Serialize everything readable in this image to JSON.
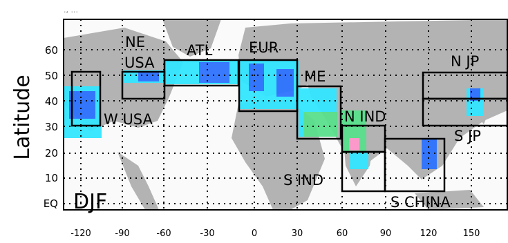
{
  "figure": {
    "season_label": "DJF",
    "y_axis_label": "Latitude",
    "top_corner_mark": "., ...",
    "x_ticks": [
      "-120",
      "-90",
      "-60",
      "-30",
      "0",
      "30",
      "60",
      "90",
      "120",
      "150"
    ],
    "y_ticks": [
      "EQ",
      "10",
      "20",
      "30",
      "40",
      "50",
      "60"
    ]
  },
  "regions": [
    {
      "name": "W USA",
      "lon": [
        -125,
        -115
      ],
      "lat": [
        30,
        50
      ]
    },
    {
      "name": "NE USA",
      "lon": [
        -85,
        -60
      ],
      "lat": [
        40,
        50
      ]
    },
    {
      "name": "ATL",
      "lon": [
        -60,
        -10
      ],
      "lat": [
        45,
        55
      ]
    },
    {
      "name": "EUR",
      "lon": [
        -10,
        28
      ],
      "lat": [
        35,
        55
      ]
    },
    {
      "name": "ME",
      "lon": [
        28,
        60
      ],
      "lat": [
        25,
        45
      ]
    },
    {
      "name": "N IND",
      "lon": [
        60,
        90
      ],
      "lat": [
        20,
        35
      ]
    },
    {
      "name": "S IND",
      "lon": [
        60,
        90
      ],
      "lat": [
        5,
        20
      ]
    },
    {
      "name": "S CHINA",
      "lon": [
        90,
        130
      ],
      "lat": [
        5,
        30
      ]
    },
    {
      "name": "N JP",
      "lon": [
        115,
        165
      ],
      "lat": [
        40,
        50
      ]
    },
    {
      "name": "S JP",
      "lon": [
        115,
        165
      ],
      "lat": [
        30,
        40
      ]
    }
  ],
  "colors": {
    "land": "#b3b3b3",
    "ocean": "#fafafa",
    "box": "#000000",
    "grid": "#000000",
    "shade_cyan": "#33e6ff",
    "shade_blue": "#2e73ff",
    "shade_green": "#59e08c",
    "shade_pink": "#ff99cc"
  }
}
